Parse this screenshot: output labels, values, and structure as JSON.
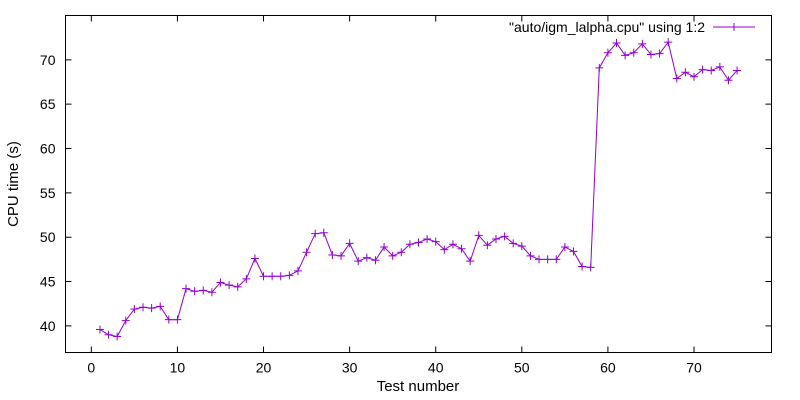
{
  "chart_data": {
    "type": "line",
    "title": "",
    "xlabel": "Test number",
    "ylabel": "CPU time (s)",
    "xlim": [
      -3,
      79
    ],
    "ylim": [
      37,
      75
    ],
    "xticks": [
      0,
      10,
      20,
      30,
      40,
      50,
      60,
      70
    ],
    "yticks": [
      40,
      45,
      50,
      55,
      60,
      65,
      70
    ],
    "grid": false,
    "legend_position": "top-right",
    "series": [
      {
        "name": "\"auto/igm_lalpha.cpu\" using 1:2",
        "color": "#9400d3",
        "marker": "plus",
        "x": [
          1,
          2,
          3,
          4,
          5,
          6,
          7,
          8,
          9,
          10,
          11,
          12,
          13,
          14,
          15,
          16,
          17,
          18,
          19,
          20,
          21,
          22,
          23,
          24,
          25,
          26,
          27,
          28,
          29,
          30,
          31,
          32,
          33,
          34,
          35,
          36,
          37,
          38,
          39,
          40,
          41,
          42,
          43,
          44,
          45,
          46,
          47,
          48,
          49,
          50,
          51,
          52,
          53,
          54,
          55,
          56,
          57,
          58,
          59,
          60,
          61,
          62,
          63,
          64,
          65,
          66,
          67,
          68,
          69,
          70,
          71,
          72,
          73,
          74,
          75
        ],
        "y": [
          39.6,
          39.0,
          38.8,
          40.6,
          41.9,
          42.1,
          42.0,
          42.2,
          40.7,
          40.7,
          44.2,
          43.9,
          44.0,
          43.8,
          44.9,
          44.6,
          44.4,
          45.3,
          47.6,
          45.6,
          45.6,
          45.6,
          45.7,
          46.2,
          48.3,
          50.4,
          50.5,
          48.0,
          47.9,
          49.3,
          47.3,
          47.7,
          47.4,
          48.9,
          47.9,
          48.3,
          49.2,
          49.4,
          49.8,
          49.5,
          48.6,
          49.2,
          48.7,
          47.3,
          50.2,
          49.1,
          49.8,
          50.1,
          49.3,
          49.0,
          47.9,
          47.5,
          47.5,
          47.5,
          48.9,
          48.4,
          46.7,
          46.6,
          69.1,
          70.8,
          71.9,
          70.5,
          70.8,
          71.8,
          70.6,
          70.7,
          72.0,
          67.9,
          68.6,
          68.1,
          68.9,
          68.8,
          69.2,
          67.7,
          68.8
        ]
      }
    ]
  }
}
